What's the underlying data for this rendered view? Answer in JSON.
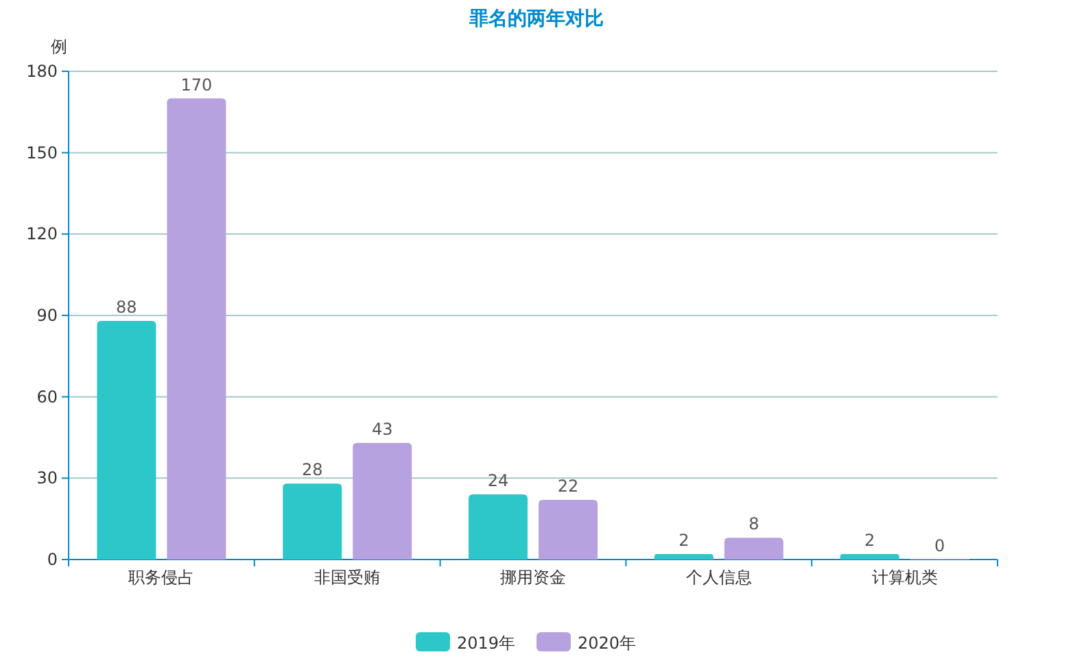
{
  "chart_data": {
    "type": "bar",
    "title": "罪名的两年对比",
    "ylabel": "例",
    "categories": [
      "职务侵占",
      "非国受贿",
      "挪用资金",
      "个人信息",
      "计算机类"
    ],
    "series": [
      {
        "name": "2019年",
        "color": "#2ec7c9",
        "values": [
          88,
          28,
          24,
          2,
          2
        ]
      },
      {
        "name": "2020年",
        "color": "#b6a2de",
        "values": [
          170,
          43,
          22,
          8,
          0
        ]
      }
    ],
    "ylim": [
      0,
      180
    ],
    "yticks": [
      0,
      30,
      60,
      90,
      120,
      150,
      180
    ],
    "grid": "y",
    "legend": "bottom",
    "data_labels": true
  }
}
